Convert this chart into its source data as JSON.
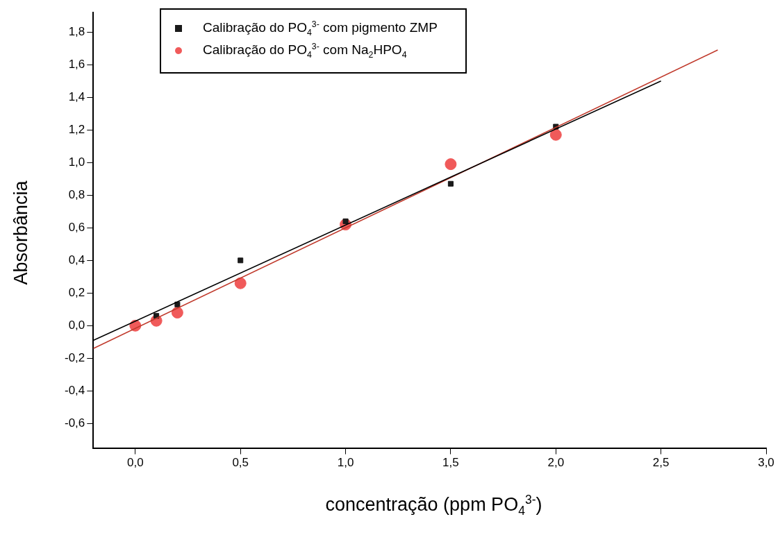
{
  "chart_data": {
    "type": "scatter",
    "xlabel": "concentração (ppm PO$_{4}$$^{3-}$)",
    "ylabel": "Absorbância",
    "xlim": [
      -0.2,
      3.0
    ],
    "xticks": [
      {
        "value": 0,
        "label": "0,0"
      },
      {
        "value": 0.5,
        "label": "0,5"
      },
      {
        "value": 1,
        "label": "1,0"
      },
      {
        "value": 1.5,
        "label": "1,5"
      },
      {
        "value": 2,
        "label": "2,0"
      },
      {
        "value": 2.5,
        "label": "2,5"
      },
      {
        "value": 3,
        "label": "3,0"
      }
    ],
    "ylim": [
      -0.75,
      1.92
    ],
    "yticks": [
      {
        "value": -0.6,
        "label": "-0,6"
      },
      {
        "value": -0.4,
        "label": "-0,4"
      },
      {
        "value": -0.2,
        "label": "-0,2"
      },
      {
        "value": 0,
        "label": "0,0"
      },
      {
        "value": 0.2,
        "label": "0,2"
      },
      {
        "value": 0.4,
        "label": "0,4"
      },
      {
        "value": 0.6,
        "label": "0,6"
      },
      {
        "value": 0.8,
        "label": "0,8"
      },
      {
        "value": 1,
        "label": "1,0"
      },
      {
        "value": 1.2,
        "label": "1,2"
      },
      {
        "value": 1.4,
        "label": "1,4"
      },
      {
        "value": 1.6,
        "label": "1,6"
      },
      {
        "value": 1.8,
        "label": "1,8"
      }
    ],
    "grid": false,
    "legend": "top",
    "series": [
      {
        "type": "line",
        "color": "#000000",
        "marker": "none",
        "x": [
          -0.2,
          2.5
        ],
        "values": [
          -0.09,
          1.5
        ]
      },
      {
        "type": "line",
        "color": "#c0392b",
        "marker": "none",
        "x": [
          -0.2,
          2.77
        ],
        "values": [
          -0.14,
          1.69
        ]
      },
      {
        "name": "Calibração do PO$_{4}$$^{3-}$ com pigmento ZMP",
        "color": "#1a1a1a",
        "marker": "square",
        "x": [
          0.1,
          0.2,
          0.5,
          1.0,
          1.5,
          2.0
        ],
        "values": [
          0.06,
          0.13,
          0.4,
          0.64,
          0.87,
          1.22
        ]
      },
      {
        "name": "Calibração do PO$_{4}$$^{3-}$ com Na$_{2}$HPO$_{4}$",
        "color": "#f05a5a",
        "marker": "circle",
        "x": [
          0,
          0.1,
          0.2,
          0.5,
          1.0,
          1.5,
          2.0
        ],
        "values": [
          0.0,
          0.03,
          0.08,
          0.26,
          0.62,
          0.99,
          1.17
        ]
      }
    ]
  }
}
